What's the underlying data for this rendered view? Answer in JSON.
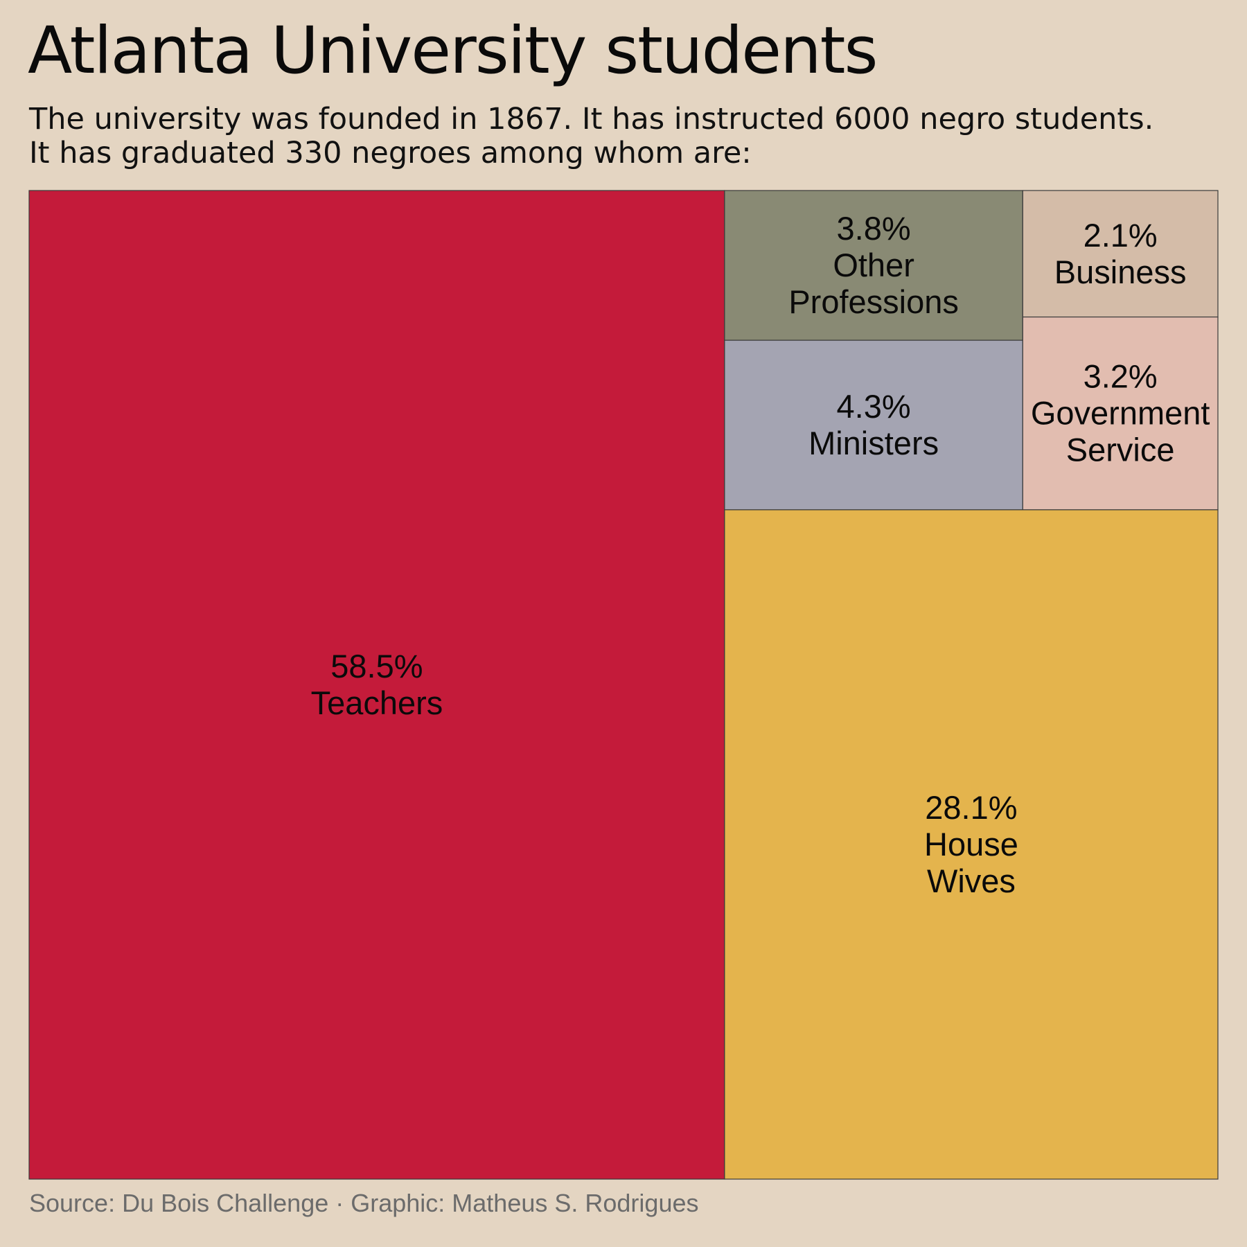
{
  "title": "Atlanta University students",
  "subtitle": {
    "line1": "The university was founded in 1867. It has instructed 6000 negro students.",
    "line2": "It has graduated 330 negroes among whom are:"
  },
  "caption": "Source: Du Bois Challenge · Graphic: Matheus S. Rodrigues",
  "colors": {
    "background": "#e4d5c2",
    "border": "#3a3a3a"
  },
  "chart_data": {
    "type": "treemap",
    "unit": "%",
    "items": [
      {
        "label": "Teachers",
        "label_lines": [
          "58.5%",
          "Teachers"
        ],
        "value": 58.5,
        "color": "#c41b3a"
      },
      {
        "label": "House Wives",
        "label_lines": [
          "28.1%",
          "House",
          "Wives"
        ],
        "value": 28.1,
        "color": "#e4b44d"
      },
      {
        "label": "Ministers",
        "label_lines": [
          "4.3%",
          "Ministers"
        ],
        "value": 4.3,
        "color": "#a4a4b2"
      },
      {
        "label": "Other Professions",
        "label_lines": [
          "3.8%",
          "Other",
          "Professions"
        ],
        "value": 3.8,
        "color": "#898a74"
      },
      {
        "label": "Government Service",
        "label_lines": [
          "3.2%",
          "Government",
          "Service"
        ],
        "value": 3.2,
        "color": "#e2bdb0"
      },
      {
        "label": "Business",
        "label_lines": [
          "2.1%",
          "Business"
        ],
        "value": 2.1,
        "color": "#d4bca8"
      }
    ]
  }
}
